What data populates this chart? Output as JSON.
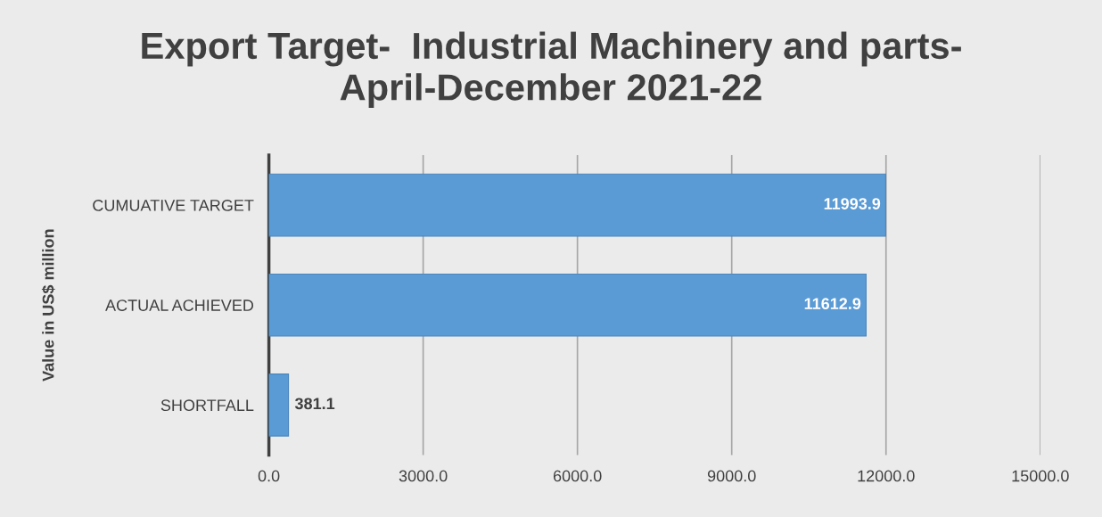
{
  "chart_data": {
    "type": "bar",
    "orientation": "horizontal",
    "title": "Export Target-  Industrial Machinery and parts-\nApril-December 2021-22",
    "ylabel": "Value in US$ million",
    "categories": [
      "CUMUATIVE TARGET",
      "ACTUAL ACHIEVED",
      "SHORTFALL"
    ],
    "values": [
      11993.9,
      11612.9,
      381.1
    ],
    "color": "#5b9bd5",
    "xlim": [
      0,
      15000
    ],
    "xticks": [
      {
        "value": 0,
        "label": "0.0"
      },
      {
        "value": 3000,
        "label": "3000.0"
      },
      {
        "value": 6000,
        "label": "6000.0"
      },
      {
        "value": 9000,
        "label": "9000.0"
      },
      {
        "value": 12000,
        "label": "12000.0"
      },
      {
        "value": 15000,
        "label": "15000.0"
      }
    ],
    "grid": "x",
    "data_labels": true
  }
}
